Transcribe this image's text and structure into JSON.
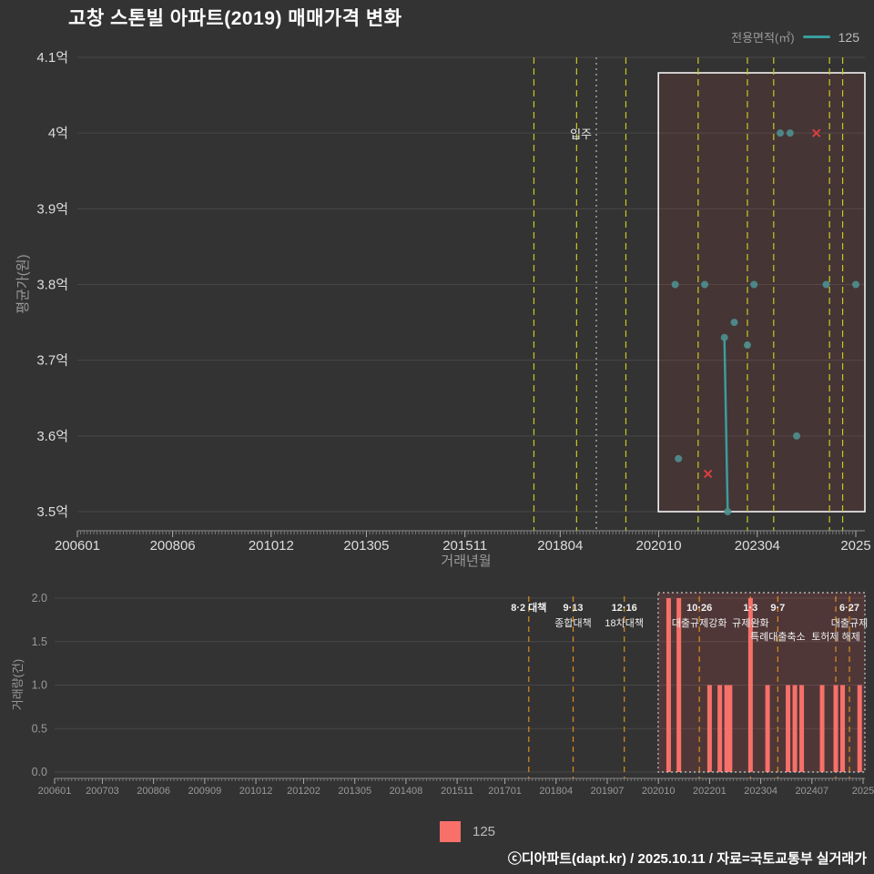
{
  "title": "고창 스톤빌 아파트(2019) 매매가격 변화",
  "legend_top": {
    "label": "전용면적(㎡)",
    "series": "125"
  },
  "legend_bottom": {
    "series": "125"
  },
  "footer": "ⓒ디아파트(dapt.kr) / 2025.10.11 / 자료=국토교통부 실거래가",
  "colors": {
    "background": "#333333",
    "teal": "#3a9d9d",
    "point": "#4e8f8f",
    "bar": "#f8706a",
    "cross": "#d94040",
    "policy_top": "#c9c91f",
    "policy_bottom": "#d98e1f",
    "grid": "#474747",
    "axis_line": "#888888",
    "tick": "#777777",
    "axis_text": "#dddddd",
    "muted_text": "#999999",
    "annotation_text": "#f0f0f0",
    "highlight_fill_top": "rgba(235,80,80,0.10)",
    "highlight_fill_bottom": "rgba(235,80,80,0.16)",
    "highlight_border_top": "#ffffff",
    "highlight_border_bottom": "#cccccc",
    "move_in_line": "#aaaaaa"
  },
  "chart_data": [
    {
      "type": "scatter",
      "name": "price",
      "ylabel": "평균가(원)",
      "xlabel": "거래년월",
      "ylim": [
        3.5,
        4.1
      ],
      "y_ticks": [
        {
          "label": "4.1억",
          "value": 4.1
        },
        {
          "label": "4억",
          "value": 4.0
        },
        {
          "label": "3.9억",
          "value": 3.9
        },
        {
          "label": "3.8억",
          "value": 3.8
        },
        {
          "label": "3.7억",
          "value": 3.7
        },
        {
          "label": "3.6억",
          "value": 3.6
        },
        {
          "label": "3.5억",
          "value": 3.5
        }
      ],
      "x_ticks": [
        {
          "label": "200601",
          "month": "200601"
        },
        {
          "label": "200806",
          "month": "200806"
        },
        {
          "label": "201012",
          "month": "201012"
        },
        {
          "label": "201305",
          "month": "201305"
        },
        {
          "label": "201511",
          "month": "201511"
        },
        {
          "label": "201804",
          "month": "201804"
        },
        {
          "label": "202010",
          "month": "202010"
        },
        {
          "label": "202304",
          "month": "202304"
        },
        {
          "label": "2025",
          "month": "202510"
        }
      ],
      "series_name": "125",
      "points": [
        {
          "month": "202103",
          "price": 3.8
        },
        {
          "month": "202104",
          "price": 3.57
        },
        {
          "month": "202112",
          "price": 3.8
        },
        {
          "month": "202206",
          "price": 3.73
        },
        {
          "month": "202207",
          "price": 3.5
        },
        {
          "month": "202209",
          "price": 3.75
        },
        {
          "month": "202301",
          "price": 3.72
        },
        {
          "month": "202303",
          "price": 3.8
        },
        {
          "month": "202311",
          "price": 4.0
        },
        {
          "month": "202402",
          "price": 4.0
        },
        {
          "month": "202404",
          "price": 3.6
        },
        {
          "month": "202501",
          "price": 3.8
        },
        {
          "month": "202510",
          "price": 3.8
        }
      ],
      "cancelled": [
        {
          "month": "202201",
          "price": 3.55
        },
        {
          "month": "202410",
          "price": 4.0
        }
      ],
      "line_segments": [
        [
          {
            "month": "202206",
            "price": 3.73
          },
          {
            "month": "202207",
            "price": 3.5
          }
        ]
      ],
      "move_in": {
        "label": "입주",
        "month": "201903"
      },
      "highlight_from": "202011"
    },
    {
      "type": "bar",
      "name": "volume",
      "ylabel": "거래량(건)",
      "ylim": [
        0,
        2
      ],
      "y_ticks": [
        {
          "label": "2.0",
          "value": 2.0
        },
        {
          "label": "1.5",
          "value": 1.5
        },
        {
          "label": "1.0",
          "value": 1.0
        },
        {
          "label": "0.5",
          "value": 0.5
        },
        {
          "label": "0.0",
          "value": 0.0
        }
      ],
      "x_ticks": [
        {
          "label": "200601",
          "month": "200601"
        },
        {
          "label": "200703",
          "month": "200703"
        },
        {
          "label": "200806",
          "month": "200806"
        },
        {
          "label": "200909",
          "month": "200909"
        },
        {
          "label": "201012",
          "month": "201012"
        },
        {
          "label": "201202",
          "month": "201202"
        },
        {
          "label": "201305",
          "month": "201305"
        },
        {
          "label": "201408",
          "month": "201408"
        },
        {
          "label": "201511",
          "month": "201511"
        },
        {
          "label": "201701",
          "month": "201701"
        },
        {
          "label": "201804",
          "month": "201804"
        },
        {
          "label": "201907",
          "month": "201907"
        },
        {
          "label": "202010",
          "month": "202010"
        },
        {
          "label": "202201",
          "month": "202201"
        },
        {
          "label": "202304",
          "month": "202304"
        },
        {
          "label": "202407",
          "month": "202407"
        },
        {
          "label": "2025",
          "month": "202510"
        }
      ],
      "bars": [
        {
          "month": "202101",
          "count": 2
        },
        {
          "month": "202104",
          "count": 2
        },
        {
          "month": "202201",
          "count": 1
        },
        {
          "month": "202204",
          "count": 1
        },
        {
          "month": "202206",
          "count": 1
        },
        {
          "month": "202207",
          "count": 1
        },
        {
          "month": "202301",
          "count": 2
        },
        {
          "month": "202306",
          "count": 1
        },
        {
          "month": "202312",
          "count": 1
        },
        {
          "month": "202402",
          "count": 1
        },
        {
          "month": "202404",
          "count": 1
        },
        {
          "month": "202410",
          "count": 1
        },
        {
          "month": "202502",
          "count": 1
        },
        {
          "month": "202504",
          "count": 1
        },
        {
          "month": "202509",
          "count": 1
        }
      ],
      "highlight_from": "202011"
    }
  ],
  "policies": [
    {
      "month": "201708",
      "lines": [
        {
          "row": 1,
          "text": "8·2 대책"
        }
      ]
    },
    {
      "month": "201809",
      "lines": [
        {
          "row": 1,
          "text": "9·13"
        },
        {
          "row": 2,
          "text": "종합대책"
        }
      ]
    },
    {
      "month": "201912",
      "lines": [
        {
          "row": 1,
          "text": "12·16"
        },
        {
          "row": 2,
          "text": "18차대책"
        }
      ]
    },
    {
      "month": "202110",
      "lines": [
        {
          "row": 1,
          "text": "10·26"
        },
        {
          "row": 2,
          "text": "대출규제강화"
        }
      ]
    },
    {
      "month": "202301",
      "lines": [
        {
          "row": 1,
          "text": "1·3"
        },
        {
          "row": 2,
          "text": "규제완화"
        }
      ]
    },
    {
      "month": "202309",
      "lines": [
        {
          "row": 1,
          "text": "9·7"
        },
        {
          "row": 3,
          "text": "특례대출축소"
        }
      ]
    },
    {
      "month": "202502",
      "lines": [
        {
          "row": 3,
          "text": "토허제 해제"
        }
      ]
    },
    {
      "month": "202506",
      "lines": [
        {
          "row": 1,
          "text": "6·27"
        },
        {
          "row": 2,
          "text": "대출규제"
        }
      ]
    }
  ]
}
